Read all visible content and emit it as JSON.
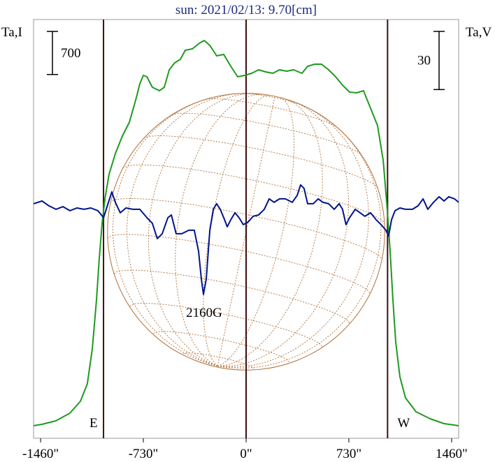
{
  "chart_data": {
    "type": "line",
    "title": "sun: 2021/02/13: 9.70[cm]",
    "y_label": "Ta,I",
    "y2_label": "Ta,V",
    "xlim": [
      -1510,
      1510
    ],
    "xticks": [
      {
        "value": -1460,
        "label": "-1460\""
      },
      {
        "value": -730,
        "label": "-730\""
      },
      {
        "value": 0,
        "label": "0\""
      },
      {
        "value": 730,
        "label": "730\""
      },
      {
        "value": 1460,
        "label": "1460\""
      }
    ],
    "ylim": [
      0,
      6800
    ],
    "y2lim": [
      -108,
      108
    ],
    "scale_bars": [
      {
        "value": 700,
        "axis": "y"
      },
      {
        "value": 30,
        "axis": "y2"
      }
    ],
    "vlines": [
      {
        "x": -1013,
        "label": "E"
      },
      {
        "x": 0
      },
      {
        "x": 1005,
        "label": "W"
      }
    ],
    "disk_radius": 985,
    "annotation": "2160G",
    "series": [
      {
        "name": "Ta,I",
        "color": "#1f9a1f",
        "x": [
          -1510,
          -1450,
          -1351,
          -1252,
          -1177,
          -1128,
          -1093,
          -1063,
          -1043,
          -1023,
          -1003,
          -974,
          -929,
          -879,
          -829,
          -780,
          -755,
          -730,
          -705,
          -666,
          -616,
          -581,
          -546,
          -507,
          -467,
          -432,
          -382,
          -333,
          -298,
          -258,
          -209,
          -159,
          -109,
          -60,
          -10,
          40,
          89,
          139,
          189,
          238,
          288,
          338,
          397,
          437,
          487,
          536,
          586,
          636,
          685,
          735,
          785,
          834,
          884,
          934,
          974,
          1003,
          1023,
          1043,
          1063,
          1093,
          1132,
          1207,
          1307,
          1406,
          1510
        ],
        "values": [
          204,
          227,
          283,
          408,
          601,
          884,
          1451,
          2244,
          2924,
          3491,
          3887,
          4284,
          4624,
          4907,
          5134,
          5531,
          5757,
          5893,
          5871,
          5701,
          5644,
          5701,
          5984,
          6097,
          6154,
          6301,
          6324,
          6415,
          6460,
          6381,
          6211,
          6233,
          6041,
          5871,
          5893,
          5927,
          5984,
          5950,
          5927,
          5984,
          5961,
          5984,
          5927,
          6041,
          6075,
          6075,
          5984,
          5871,
          5735,
          5621,
          5610,
          5644,
          5361,
          5077,
          4511,
          3717,
          3037,
          2244,
          1564,
          997,
          657,
          431,
          317,
          238,
          204
        ]
      },
      {
        "name": "Ta,V",
        "color": "#00148c",
        "axis": "y2",
        "x": [
          -1510,
          -1450,
          -1401,
          -1351,
          -1301,
          -1252,
          -1202,
          -1152,
          -1103,
          -1053,
          -1013,
          -978,
          -954,
          -929,
          -894,
          -854,
          -805,
          -755,
          -705,
          -666,
          -631,
          -596,
          -556,
          -531,
          -497,
          -457,
          -407,
          -368,
          -338,
          -318,
          -303,
          -283,
          -258,
          -233,
          -209,
          -184,
          -159,
          -134,
          -109,
          -79,
          -50,
          -20,
          15,
          50,
          89,
          129,
          164,
          199,
          238,
          278,
          328,
          363,
          387,
          412,
          437,
          477,
          512,
          546,
          586,
          626,
          661,
          685,
          710,
          735,
          775,
          810,
          844,
          884,
          924,
          959,
          993,
          1013,
          1033,
          1058,
          1093,
          1132,
          1182,
          1222,
          1257,
          1291,
          1331,
          1371,
          1406,
          1440,
          1480,
          1510
        ],
        "values": [
          13.0,
          14.4,
          11.9,
          10.1,
          11.5,
          9.4,
          10.8,
          10.1,
          10.8,
          9.4,
          5.8,
          13.7,
          19.1,
          13.7,
          8.3,
          10.8,
          10.1,
          10.1,
          5.8,
          2.9,
          -5.0,
          -2.5,
          5.8,
          7.2,
          -2.5,
          -2.5,
          -0.7,
          -0.7,
          -11.5,
          -25.9,
          -33.8,
          -25.9,
          -0.7,
          10.1,
          13.0,
          10.1,
          5.8,
          1.1,
          4.7,
          8.3,
          5.8,
          2.2,
          3.6,
          6.5,
          7.2,
          10.1,
          15.5,
          13.7,
          15.5,
          15.5,
          13.7,
          17.3,
          22.7,
          20.9,
          13.0,
          13.0,
          15.5,
          13.7,
          13.0,
          10.1,
          13.0,
          10.1,
          2.2,
          5.8,
          10.1,
          8.3,
          6.5,
          8.3,
          4.7,
          2.2,
          -0.7,
          -3.6,
          4.7,
          9.4,
          10.8,
          10.1,
          10.1,
          11.9,
          15.5,
          10.1,
          13.7,
          16.6,
          14.4,
          16.6,
          15.5,
          13.7
        ]
      }
    ]
  }
}
